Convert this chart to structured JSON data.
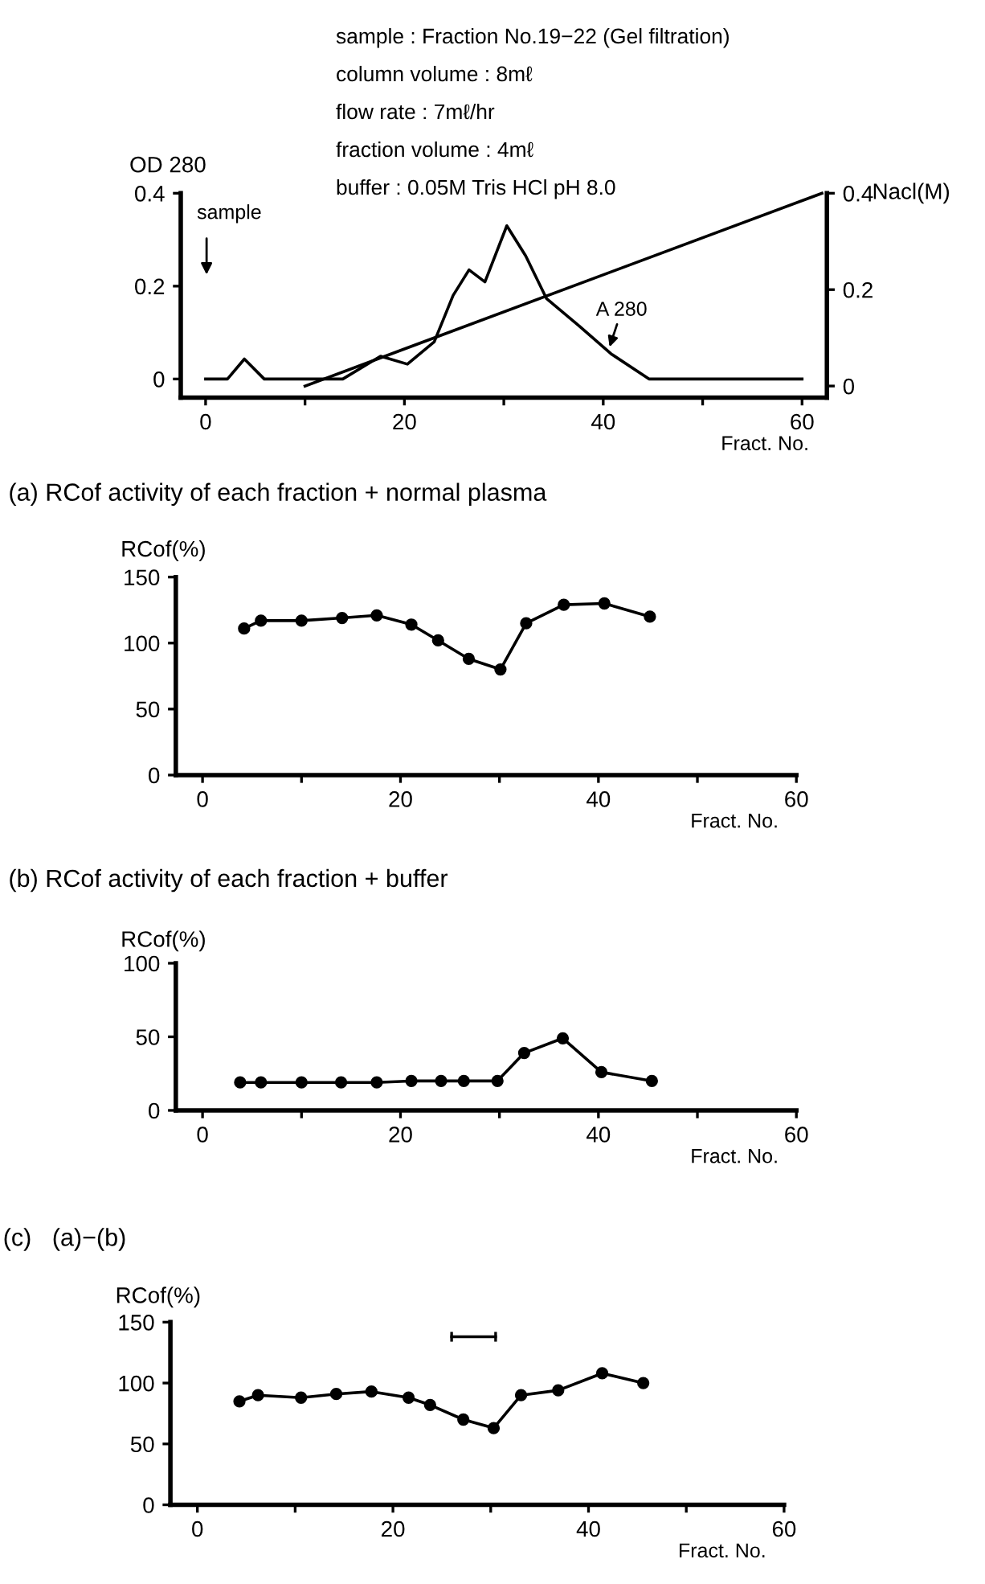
{
  "chart_data": [
    {
      "type": "line",
      "xlabel": "Fract. No.",
      "ylabel": "OD 280",
      "y2label": "Nacl(M)",
      "annotations": [
        "sample : Fraction No.19−22 (Gel filtration)",
        "column volume : 8mℓ",
        "flow rate : 7mℓ/hr",
        "fraction volume : 4mℓ",
        "buffer : 0.05M Tris HCl pH 8.0",
        "sample",
        {
          "text": "A 280",
          "x": 40.5,
          "y": 0.06
        }
      ],
      "series": [
        {
          "color": "#000000",
          "x": [
            0,
            2.2,
            3.9,
            5.9,
            13.8,
            17.6,
            20.3,
            23,
            24.9,
            26.5,
            28.1,
            30.3,
            32.2,
            34.3,
            37.6,
            40.8,
            44.6,
            60
          ],
          "values": [
            0,
            0,
            0.043,
            0,
            0,
            0.049,
            0.032,
            0.08,
            0.18,
            0.235,
            0.209,
            0.33,
            0.265,
            0.173,
            0.114,
            0.054,
            0,
            0
          ]
        },
        {
          "color": "#000000",
          "axis": "y2",
          "x": [
            10,
            62
          ],
          "values": [
            0,
            0.4
          ]
        }
      ],
      "xlim": [
        -2.5,
        62.5
      ],
      "xticks": [
        0,
        {
          "value": 10,
          "label": null
        },
        20,
        {
          "value": 30,
          "label": null
        },
        40,
        {
          "value": 50,
          "label": null
        },
        60
      ],
      "ylim": [
        -0.04,
        0.4
      ],
      "yticks": [
        0,
        0.2,
        0.4
      ],
      "y2lim": [
        -0.024,
        0.4
      ],
      "y2ticks": [
        0,
        0.2,
        0.4
      ],
      "marker": "none",
      "grid": false
    },
    {
      "type": "line",
      "title": "(a) RCof activity of each fraction + normal plasma",
      "xlabel": "Fract. No.",
      "ylabel": "RCof(%)",
      "x": [
        4.2,
        5.9,
        10,
        14.1,
        17.6,
        21.1,
        23.8,
        26.9,
        30.1,
        32.7,
        36.5,
        40.6,
        45.2
      ],
      "series": [
        {
          "color": "#000000",
          "values": [
            111,
            117,
            117,
            119,
            121,
            114,
            102,
            88,
            80,
            115,
            129,
            130,
            120
          ]
        }
      ],
      "xlim": [
        -2.7,
        60
      ],
      "xticks": [
        0,
        {
          "value": 10,
          "label": null
        },
        20,
        {
          "value": 30,
          "label": null
        },
        40,
        {
          "value": 50,
          "label": null
        },
        60
      ],
      "ylim": [
        0,
        150
      ],
      "yticks": [
        0,
        50,
        100,
        150
      ],
      "marker": "circle",
      "grid": false
    },
    {
      "type": "line",
      "title": "(b) RCof activity of each fraction + buffer",
      "xlabel": "Fract. No.",
      "ylabel": "RCof(%)",
      "x": [
        3.8,
        5.9,
        10,
        14,
        17.6,
        21.1,
        24.1,
        26.4,
        29.8,
        32.5,
        36.4,
        40.3,
        45.4
      ],
      "series": [
        {
          "color": "#000000",
          "values": [
            19,
            19,
            19,
            19,
            19,
            20,
            20,
            20,
            20,
            39,
            49,
            26,
            20
          ]
        }
      ],
      "xlim": [
        -2.7,
        60
      ],
      "xticks": [
        0,
        {
          "value": 10,
          "label": null
        },
        20,
        {
          "value": 30,
          "label": null
        },
        40,
        {
          "value": 50,
          "label": null
        },
        60
      ],
      "ylim": [
        0,
        100
      ],
      "yticks": [
        0,
        50,
        100
      ],
      "marker": "circle",
      "grid": false
    },
    {
      "type": "line",
      "title": "(c)   (a)−(b)",
      "xlabel": "Fract. No.",
      "ylabel": "RCof(%)",
      "x": [
        4.3,
        6.2,
        10.6,
        14.2,
        17.8,
        21.6,
        23.8,
        27.2,
        30.3,
        33.1,
        36.9,
        41.4,
        45.6
      ],
      "series": [
        {
          "color": "#000000",
          "values": [
            85,
            90,
            88,
            91,
            93,
            88,
            82,
            70,
            63,
            90,
            94,
            108,
            100
          ]
        },
        {
          "type": "line",
          "marker": "none",
          "color": "#000000",
          "x": [
            26,
            30.5
          ],
          "values": [
            138,
            138
          ],
          "errors": [
            4,
            4
          ]
        }
      ],
      "xlim": [
        -2.76,
        60
      ],
      "xticks": [
        0,
        {
          "value": 10,
          "label": null
        },
        20,
        {
          "value": 30,
          "label": null
        },
        40,
        {
          "value": 50,
          "label": null
        },
        60
      ],
      "ylim": [
        0,
        150
      ],
      "yticks": [
        0,
        50,
        100,
        150
      ],
      "marker": "circle",
      "grid": false
    }
  ]
}
